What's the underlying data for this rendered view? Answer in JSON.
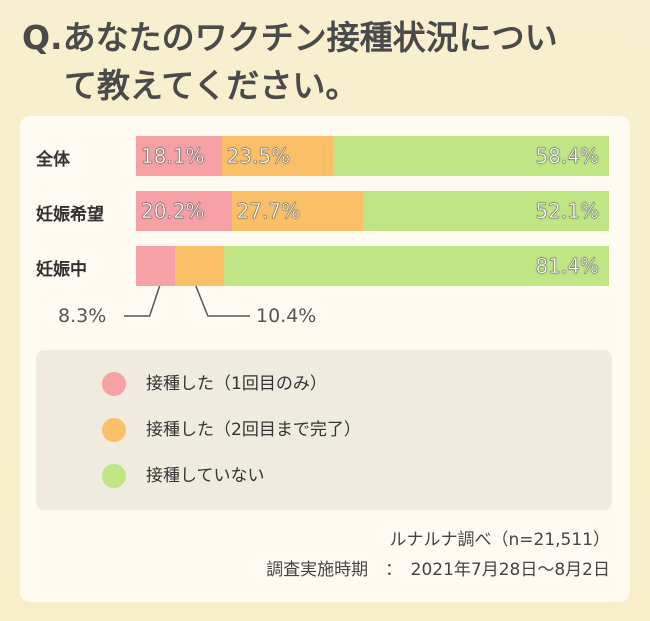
{
  "title": {
    "line1": "Q.あなたのワクチン接種状況につい",
    "line2": "て教えてください。"
  },
  "chart_data": {
    "type": "bar",
    "orientation": "horizontal",
    "stacked": true,
    "categories": [
      "全体",
      "妊娠希望",
      "妊娠中"
    ],
    "series": [
      {
        "name": "接種した（1回目のみ）",
        "values": [
          18.1,
          20.2,
          8.3
        ],
        "labels": [
          "18.1%",
          "20.2%",
          "8.3%"
        ],
        "color": "#f7a1a6"
      },
      {
        "name": "接種した（2回目まで完了）",
        "values": [
          23.5,
          27.7,
          10.4
        ],
        "labels": [
          "23.5%",
          "27.7%",
          "10.4%"
        ],
        "color": "#fbbf68"
      },
      {
        "name": "接種していない",
        "values": [
          58.4,
          52.1,
          81.4
        ],
        "labels": [
          "58.4%",
          "52.1%",
          "81.4%"
        ],
        "color": "#bfe584"
      }
    ],
    "xlim": [
      0,
      100
    ],
    "legend": "bottom"
  },
  "source": {
    "line1": "ルナルナ調べ（n=21,511）",
    "line2": "調査実施時期　：　2021年7月28日～8月2日"
  }
}
